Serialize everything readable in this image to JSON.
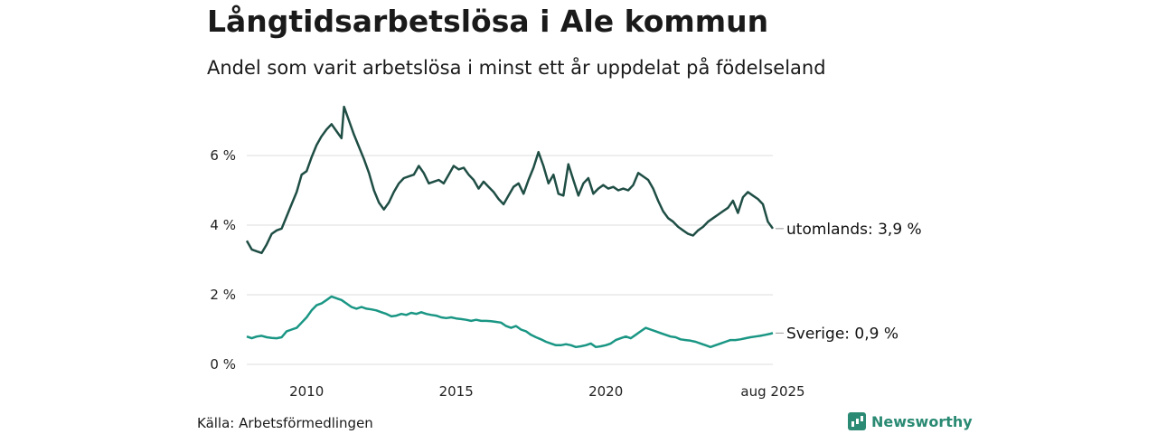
{
  "header": {
    "title": "Långtidsarbetslösa i Ale kommun",
    "subtitle": "Andel som varit arbetslösa i minst ett år uppdelat på födelseland"
  },
  "footer": {
    "source": "Källa: Arbetsförmedlingen",
    "brand": "Newsworthy"
  },
  "colors": {
    "utomlands": "#1f4e45",
    "sverige": "#1a9684",
    "grid": "#dddddd",
    "brand": "#2a8a73"
  },
  "chart_data": {
    "type": "line",
    "x_ticks": [
      "2010",
      "2015",
      "2020",
      "aug 2025"
    ],
    "y_ticks": [
      "0 %",
      "2 %",
      "4 %",
      "6 %"
    ],
    "y_tick_values": [
      0,
      2,
      4,
      6
    ],
    "ylim": [
      0,
      7.6
    ],
    "xlim": [
      "2008-01",
      "2025-08"
    ],
    "grid": true,
    "series": [
      {
        "name": "utomlands",
        "end_label": "utomlands: 3,9 %",
        "points": [
          [
            "2008-01",
            3.55
          ],
          [
            "2008-03",
            3.3
          ],
          [
            "2008-05",
            3.25
          ],
          [
            "2008-07",
            3.2
          ],
          [
            "2008-09",
            3.45
          ],
          [
            "2008-11",
            3.75
          ],
          [
            "2009-01",
            3.85
          ],
          [
            "2009-03",
            3.9
          ],
          [
            "2009-05",
            4.25
          ],
          [
            "2009-07",
            4.6
          ],
          [
            "2009-09",
            4.95
          ],
          [
            "2009-11",
            5.45
          ],
          [
            "2010-01",
            5.55
          ],
          [
            "2010-03",
            5.95
          ],
          [
            "2010-05",
            6.3
          ],
          [
            "2010-07",
            6.55
          ],
          [
            "2010-09",
            6.75
          ],
          [
            "2010-11",
            6.9
          ],
          [
            "2011-01",
            6.7
          ],
          [
            "2011-03",
            6.5
          ],
          [
            "2011-04",
            7.4
          ],
          [
            "2011-06",
            7.0
          ],
          [
            "2011-08",
            6.6
          ],
          [
            "2011-10",
            6.25
          ],
          [
            "2011-12",
            5.9
          ],
          [
            "2012-02",
            5.5
          ],
          [
            "2012-04",
            5.0
          ],
          [
            "2012-06",
            4.65
          ],
          [
            "2012-08",
            4.45
          ],
          [
            "2012-10",
            4.65
          ],
          [
            "2012-12",
            4.95
          ],
          [
            "2013-02",
            5.2
          ],
          [
            "2013-04",
            5.35
          ],
          [
            "2013-06",
            5.4
          ],
          [
            "2013-08",
            5.45
          ],
          [
            "2013-10",
            5.7
          ],
          [
            "2013-12",
            5.5
          ],
          [
            "2014-02",
            5.2
          ],
          [
            "2014-04",
            5.25
          ],
          [
            "2014-06",
            5.3
          ],
          [
            "2014-08",
            5.2
          ],
          [
            "2014-10",
            5.45
          ],
          [
            "2014-12",
            5.7
          ],
          [
            "2015-02",
            5.6
          ],
          [
            "2015-04",
            5.65
          ],
          [
            "2015-06",
            5.45
          ],
          [
            "2015-08",
            5.3
          ],
          [
            "2015-10",
            5.05
          ],
          [
            "2015-12",
            5.25
          ],
          [
            "2016-02",
            5.1
          ],
          [
            "2016-04",
            4.95
          ],
          [
            "2016-06",
            4.75
          ],
          [
            "2016-08",
            4.6
          ],
          [
            "2016-10",
            4.85
          ],
          [
            "2016-12",
            5.1
          ],
          [
            "2017-02",
            5.2
          ],
          [
            "2017-04",
            4.9
          ],
          [
            "2017-06",
            5.3
          ],
          [
            "2017-08",
            5.65
          ],
          [
            "2017-10",
            6.1
          ],
          [
            "2017-12",
            5.7
          ],
          [
            "2018-02",
            5.2
          ],
          [
            "2018-04",
            5.45
          ],
          [
            "2018-06",
            4.9
          ],
          [
            "2018-08",
            4.85
          ],
          [
            "2018-10",
            5.75
          ],
          [
            "2018-12",
            5.3
          ],
          [
            "2019-02",
            4.85
          ],
          [
            "2019-04",
            5.2
          ],
          [
            "2019-06",
            5.35
          ],
          [
            "2019-08",
            4.9
          ],
          [
            "2019-10",
            5.05
          ],
          [
            "2019-12",
            5.15
          ],
          [
            "2020-02",
            5.05
          ],
          [
            "2020-04",
            5.1
          ],
          [
            "2020-06",
            5.0
          ],
          [
            "2020-08",
            5.05
          ],
          [
            "2020-10",
            5.0
          ],
          [
            "2020-12",
            5.15
          ],
          [
            "2021-02",
            5.5
          ],
          [
            "2021-04",
            5.4
          ],
          [
            "2021-06",
            5.3
          ],
          [
            "2021-08",
            5.05
          ],
          [
            "2021-10",
            4.7
          ],
          [
            "2021-12",
            4.4
          ],
          [
            "2022-02",
            4.2
          ],
          [
            "2022-04",
            4.1
          ],
          [
            "2022-06",
            3.95
          ],
          [
            "2022-08",
            3.85
          ],
          [
            "2022-10",
            3.75
          ],
          [
            "2022-12",
            3.7
          ],
          [
            "2023-02",
            3.85
          ],
          [
            "2023-04",
            3.95
          ],
          [
            "2023-06",
            4.1
          ],
          [
            "2023-08",
            4.2
          ],
          [
            "2023-10",
            4.3
          ],
          [
            "2023-12",
            4.4
          ],
          [
            "2024-02",
            4.5
          ],
          [
            "2024-04",
            4.7
          ],
          [
            "2024-06",
            4.35
          ],
          [
            "2024-08",
            4.8
          ],
          [
            "2024-10",
            4.95
          ],
          [
            "2024-12",
            4.85
          ],
          [
            "2025-02",
            4.75
          ],
          [
            "2025-04",
            4.6
          ],
          [
            "2025-06",
            4.1
          ],
          [
            "2025-08",
            3.9
          ]
        ]
      },
      {
        "name": "Sverige",
        "end_label": "Sverige: 0,9 %",
        "points": [
          [
            "2008-01",
            0.8
          ],
          [
            "2008-03",
            0.75
          ],
          [
            "2008-05",
            0.8
          ],
          [
            "2008-07",
            0.82
          ],
          [
            "2008-09",
            0.78
          ],
          [
            "2008-11",
            0.76
          ],
          [
            "2009-01",
            0.75
          ],
          [
            "2009-03",
            0.78
          ],
          [
            "2009-05",
            0.95
          ],
          [
            "2009-07",
            1.0
          ],
          [
            "2009-09",
            1.05
          ],
          [
            "2009-11",
            1.2
          ],
          [
            "2010-01",
            1.35
          ],
          [
            "2010-03",
            1.55
          ],
          [
            "2010-05",
            1.7
          ],
          [
            "2010-07",
            1.75
          ],
          [
            "2010-09",
            1.85
          ],
          [
            "2010-11",
            1.95
          ],
          [
            "2011-01",
            1.9
          ],
          [
            "2011-03",
            1.85
          ],
          [
            "2011-05",
            1.75
          ],
          [
            "2011-07",
            1.65
          ],
          [
            "2011-09",
            1.6
          ],
          [
            "2011-11",
            1.65
          ],
          [
            "2012-01",
            1.6
          ],
          [
            "2012-03",
            1.58
          ],
          [
            "2012-05",
            1.55
          ],
          [
            "2012-07",
            1.5
          ],
          [
            "2012-09",
            1.45
          ],
          [
            "2012-11",
            1.38
          ],
          [
            "2013-01",
            1.4
          ],
          [
            "2013-03",
            1.45
          ],
          [
            "2013-05",
            1.42
          ],
          [
            "2013-07",
            1.48
          ],
          [
            "2013-09",
            1.45
          ],
          [
            "2013-11",
            1.5
          ],
          [
            "2014-01",
            1.45
          ],
          [
            "2014-03",
            1.42
          ],
          [
            "2014-05",
            1.4
          ],
          [
            "2014-07",
            1.35
          ],
          [
            "2014-09",
            1.33
          ],
          [
            "2014-11",
            1.35
          ],
          [
            "2015-01",
            1.32
          ],
          [
            "2015-03",
            1.3
          ],
          [
            "2015-05",
            1.28
          ],
          [
            "2015-07",
            1.25
          ],
          [
            "2015-09",
            1.28
          ],
          [
            "2015-11",
            1.25
          ],
          [
            "2016-01",
            1.25
          ],
          [
            "2016-03",
            1.24
          ],
          [
            "2016-05",
            1.22
          ],
          [
            "2016-07",
            1.2
          ],
          [
            "2016-09",
            1.1
          ],
          [
            "2016-11",
            1.05
          ],
          [
            "2017-01",
            1.1
          ],
          [
            "2017-03",
            1.0
          ],
          [
            "2017-05",
            0.95
          ],
          [
            "2017-07",
            0.85
          ],
          [
            "2017-09",
            0.78
          ],
          [
            "2017-11",
            0.72
          ],
          [
            "2018-01",
            0.65
          ],
          [
            "2018-03",
            0.6
          ],
          [
            "2018-05",
            0.55
          ],
          [
            "2018-07",
            0.55
          ],
          [
            "2018-09",
            0.58
          ],
          [
            "2018-11",
            0.55
          ],
          [
            "2019-01",
            0.5
          ],
          [
            "2019-03",
            0.52
          ],
          [
            "2019-05",
            0.55
          ],
          [
            "2019-07",
            0.6
          ],
          [
            "2019-09",
            0.5
          ],
          [
            "2019-11",
            0.52
          ],
          [
            "2020-01",
            0.55
          ],
          [
            "2020-03",
            0.6
          ],
          [
            "2020-05",
            0.7
          ],
          [
            "2020-07",
            0.75
          ],
          [
            "2020-09",
            0.8
          ],
          [
            "2020-11",
            0.75
          ],
          [
            "2021-01",
            0.85
          ],
          [
            "2021-03",
            0.95
          ],
          [
            "2021-05",
            1.05
          ],
          [
            "2021-07",
            1.0
          ],
          [
            "2021-09",
            0.95
          ],
          [
            "2021-11",
            0.9
          ],
          [
            "2022-01",
            0.85
          ],
          [
            "2022-03",
            0.8
          ],
          [
            "2022-05",
            0.78
          ],
          [
            "2022-07",
            0.72
          ],
          [
            "2022-09",
            0.7
          ],
          [
            "2022-11",
            0.68
          ],
          [
            "2023-01",
            0.65
          ],
          [
            "2023-03",
            0.6
          ],
          [
            "2023-05",
            0.55
          ],
          [
            "2023-07",
            0.5
          ],
          [
            "2023-09",
            0.55
          ],
          [
            "2023-11",
            0.6
          ],
          [
            "2024-01",
            0.65
          ],
          [
            "2024-03",
            0.7
          ],
          [
            "2024-05",
            0.7
          ],
          [
            "2024-07",
            0.72
          ],
          [
            "2024-09",
            0.75
          ],
          [
            "2024-11",
            0.78
          ],
          [
            "2025-01",
            0.8
          ],
          [
            "2025-03",
            0.82
          ],
          [
            "2025-05",
            0.85
          ],
          [
            "2025-07",
            0.88
          ],
          [
            "2025-08",
            0.9
          ]
        ]
      }
    ]
  }
}
